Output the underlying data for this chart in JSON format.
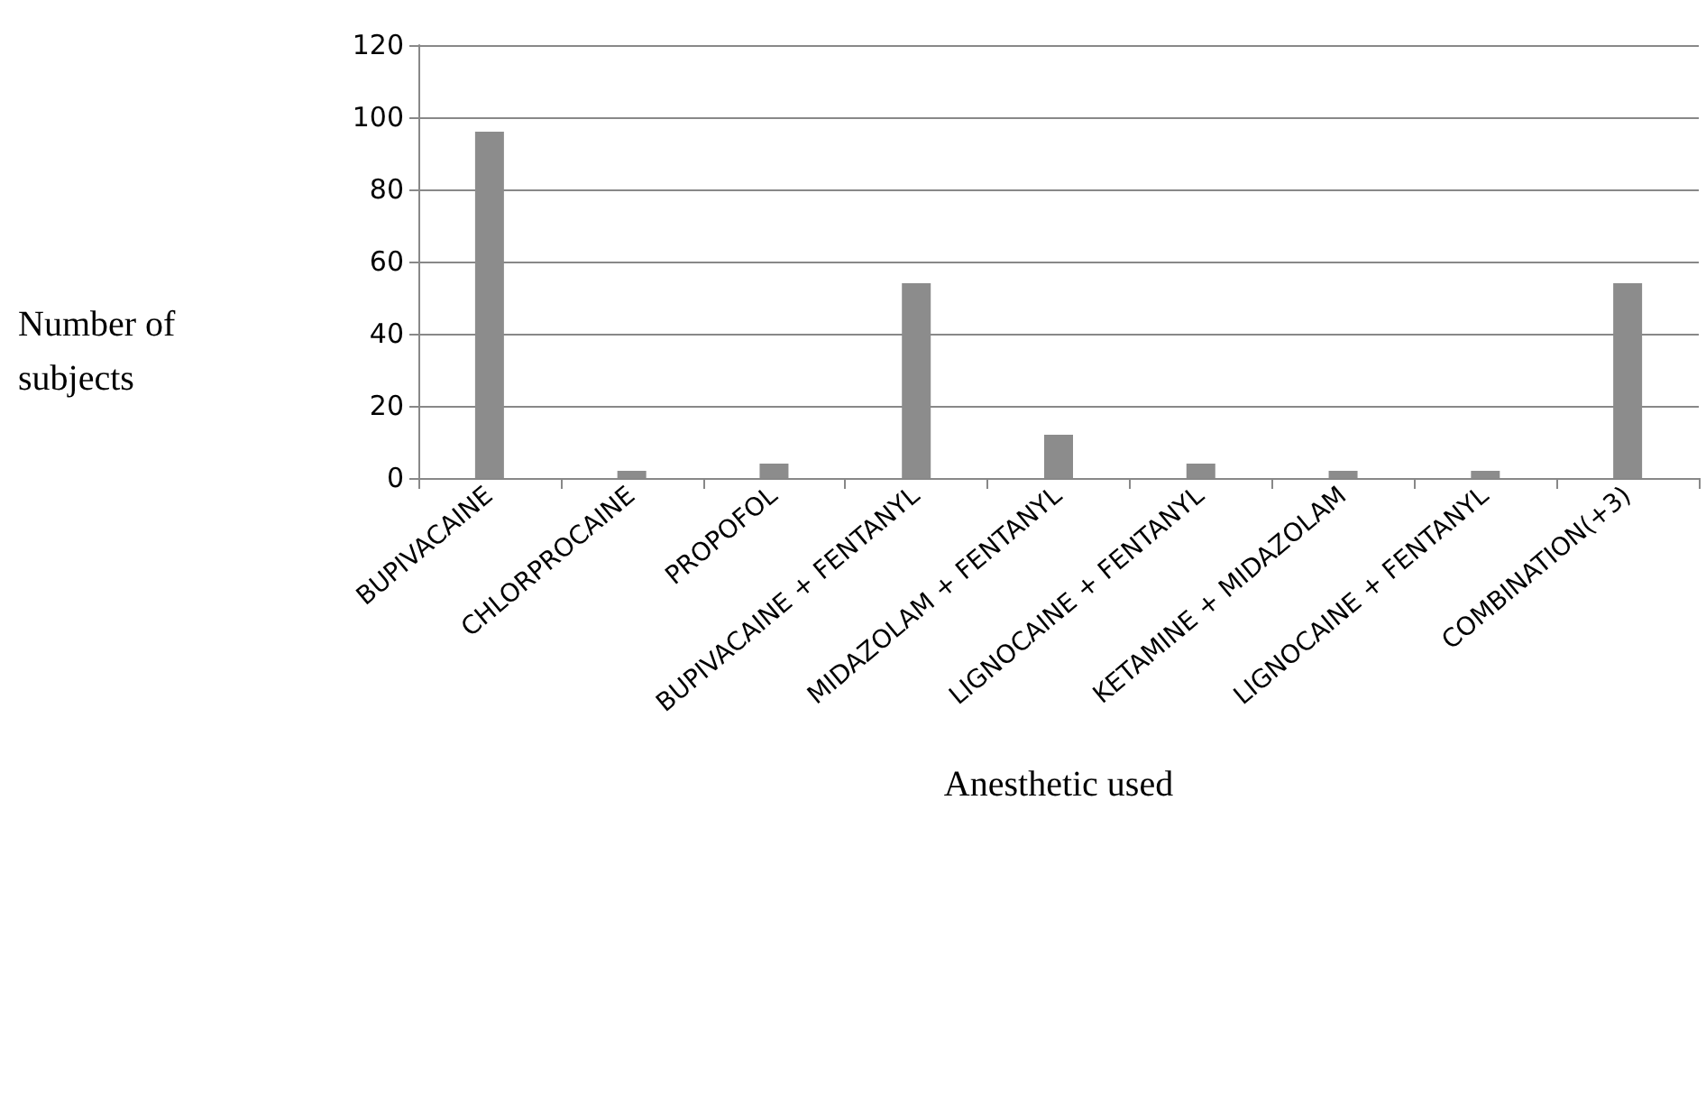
{
  "chart_data": {
    "type": "bar",
    "xlabel": "Anesthetic used",
    "ylabel": "Number of\nsubjects",
    "categories": [
      "BUPIVACAINE",
      "CHLORPROCAINE",
      "PROPOFOL",
      "BUPIVACAINE + FENTANYL",
      "MIDAZOLAM + FENTANYL",
      "LIGNOCAINE + FENTANYL",
      "KETAMINE + MIDAZOLAM",
      "LIGNOCAINE + FENTANYL",
      "COMBINATION(+3)"
    ],
    "values": [
      96,
      2,
      4,
      54,
      12,
      4,
      2,
      2,
      54
    ],
    "color": "#8c8c8c",
    "ylim": [
      0,
      120
    ],
    "yticks": [
      0,
      20,
      40,
      60,
      80,
      100,
      120
    ],
    "grid": "y"
  }
}
